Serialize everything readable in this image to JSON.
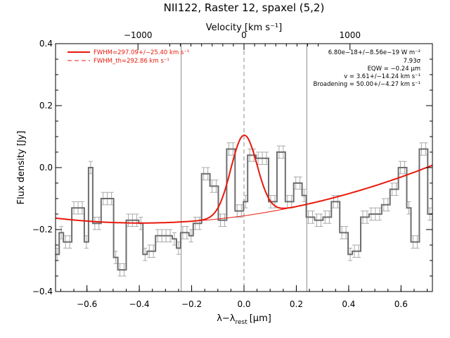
{
  "chart_data": {
    "type": "line",
    "title": "NII122, Raster 12, spaxel (5,2)",
    "xlabel_main": "λ−λ",
    "xlabel_sub": "rest",
    "xlabel_unit": "[μm]",
    "ylabel": "Flux density [Jy]",
    "top_axis_label": "Velocity [km s⁻¹]",
    "xlim": [
      -0.72,
      0.72
    ],
    "ylim": [
      -0.4,
      0.4
    ],
    "x_ticks": [
      -0.6,
      -0.4,
      -0.2,
      0.0,
      0.2,
      0.4,
      0.6
    ],
    "x_tick_labels": [
      "−0.6",
      "−0.4",
      "−0.2",
      "0.0",
      "0.2",
      "0.4",
      "0.6"
    ],
    "y_ticks": [
      -0.4,
      -0.2,
      0.0,
      0.2,
      0.4
    ],
    "y_tick_labels": [
      "−0.4",
      "−0.2",
      "0.0",
      "0.2",
      "0.4"
    ],
    "top_ticks_um": [
      -0.405,
      0.0,
      0.405
    ],
    "top_tick_labels": [
      "−1000",
      "0",
      "1000"
    ],
    "vlines_um": [
      -0.24,
      0.0,
      0.24
    ],
    "legend": [
      {
        "label": "FWHM=297.09+/−25.40 km s⁻¹",
        "style": "solid"
      },
      {
        "label": "FWHM_th=292.86 km s⁻¹",
        "style": "dashed"
      }
    ],
    "annotations": [
      "6.80e−18+/−8.56e−19 W m⁻²",
      "7.93σ",
      "EQW = −0.24 μm",
      "v = 3.61+/−14.24 km s⁻¹",
      "Broadening = 50.00+/−4.27 km s⁻¹"
    ],
    "spectrum_x": [
      -0.714,
      -0.698,
      -0.682,
      -0.666,
      -0.65,
      -0.634,
      -0.618,
      -0.602,
      -0.586,
      -0.57,
      -0.554,
      -0.538,
      -0.522,
      -0.506,
      -0.49,
      -0.474,
      -0.458,
      -0.442,
      -0.426,
      -0.41,
      -0.394,
      -0.378,
      -0.362,
      -0.346,
      -0.33,
      -0.314,
      -0.298,
      -0.282,
      -0.266,
      -0.25,
      -0.234,
      -0.218,
      -0.202,
      -0.186,
      -0.17,
      -0.154,
      -0.138,
      -0.122,
      -0.106,
      -0.09,
      -0.074,
      -0.058,
      -0.042,
      -0.026,
      -0.01,
      0.006,
      0.022,
      0.038,
      0.054,
      0.07,
      0.086,
      0.102,
      0.118,
      0.134,
      0.15,
      0.166,
      0.182,
      0.198,
      0.214,
      0.23,
      0.246,
      0.262,
      0.278,
      0.294,
      0.31,
      0.326,
      0.342,
      0.358,
      0.374,
      0.39,
      0.406,
      0.422,
      0.438,
      0.454,
      0.47,
      0.486,
      0.502,
      0.518,
      0.534,
      0.55,
      0.566,
      0.582,
      0.598,
      0.614,
      0.63,
      0.646,
      0.662,
      0.678,
      0.694,
      0.71
    ],
    "spectrum_y": [
      -0.28,
      -0.21,
      -0.24,
      -0.24,
      -0.13,
      -0.13,
      -0.13,
      -0.24,
      -0.0,
      -0.18,
      -0.18,
      -0.1,
      -0.1,
      -0.1,
      -0.29,
      -0.33,
      -0.33,
      -0.17,
      -0.17,
      -0.17,
      -0.18,
      -0.28,
      -0.27,
      -0.27,
      -0.22,
      -0.22,
      -0.22,
      -0.22,
      -0.23,
      -0.26,
      -0.21,
      -0.21,
      -0.22,
      -0.18,
      -0.18,
      -0.02,
      -0.02,
      -0.06,
      -0.06,
      -0.17,
      -0.17,
      0.06,
      0.06,
      -0.14,
      -0.14,
      -0.11,
      0.04,
      0.04,
      0.03,
      0.03,
      0.03,
      -0.11,
      -0.11,
      0.05,
      0.05,
      -0.11,
      -0.11,
      -0.05,
      -0.05,
      -0.09,
      -0.16,
      -0.16,
      -0.17,
      -0.17,
      -0.16,
      -0.16,
      -0.11,
      -0.11,
      -0.21,
      -0.21,
      -0.28,
      -0.27,
      -0.27,
      -0.16,
      -0.16,
      -0.15,
      -0.15,
      -0.15,
      -0.12,
      -0.12,
      -0.07,
      -0.07,
      0.0,
      0.0,
      -0.13,
      -0.24,
      -0.24,
      0.06,
      0.06,
      -0.15
    ],
    "spectrum_err": 0.02,
    "model_fit": {
      "baseline_poly": [
        -0.1555,
        0.1185,
        0.15
      ],
      "baseline_x0": 0.0,
      "peak_center": 0.0,
      "peak_amp": 0.26,
      "peak_sigma": 0.05
    }
  },
  "colors": {
    "data": "#6e6e6e",
    "error": "#a9a9a9",
    "fit": "#e8190c",
    "vline": "#8c8c8c"
  }
}
